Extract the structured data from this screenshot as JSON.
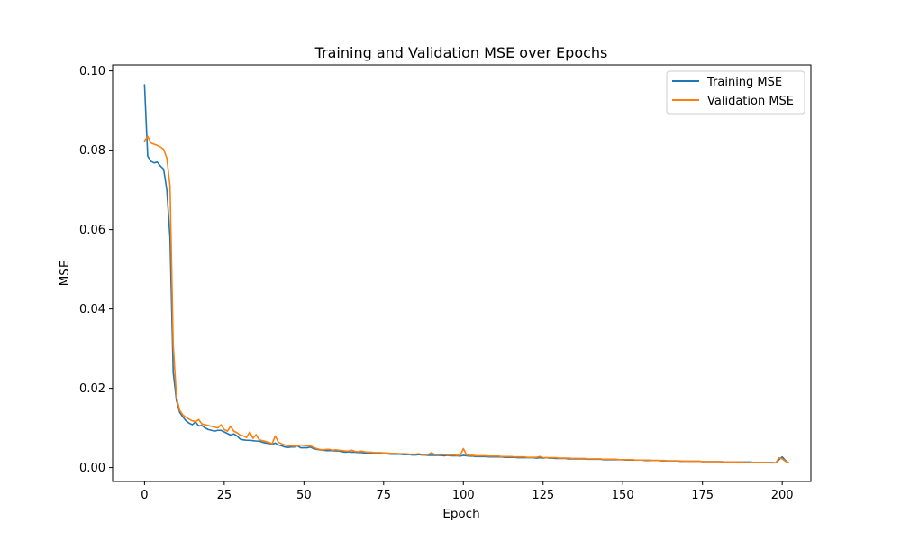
{
  "chart_data": {
    "type": "line",
    "title": "Training and Validation MSE over Epochs",
    "xlabel": "Epoch",
    "ylabel": "MSE",
    "xlim": [
      -10,
      209
    ],
    "ylim": [
      -0.0035,
      0.1015
    ],
    "xticks": [
      0,
      25,
      50,
      75,
      100,
      125,
      150,
      175,
      200
    ],
    "yticks": [
      0.0,
      0.02,
      0.04,
      0.06,
      0.08,
      0.1
    ],
    "ytick_labels": [
      "0.00",
      "0.02",
      "0.04",
      "0.06",
      "0.08",
      "0.10"
    ],
    "grid": false,
    "legend": "top-right",
    "series": [
      {
        "name": "Training MSE",
        "color": "#1f77b4",
        "values": [
          0.0965,
          0.0785,
          0.0772,
          0.0768,
          0.077,
          0.076,
          0.0752,
          0.07,
          0.058,
          0.024,
          0.017,
          0.014,
          0.0128,
          0.0118,
          0.0112,
          0.0108,
          0.0115,
          0.0105,
          0.0106,
          0.01,
          0.0096,
          0.0094,
          0.0092,
          0.0094,
          0.0094,
          0.009,
          0.0086,
          0.0082,
          0.0085,
          0.008,
          0.0072,
          0.007,
          0.0069,
          0.0069,
          0.0068,
          0.0067,
          0.0067,
          0.0064,
          0.0062,
          0.0061,
          0.0059,
          0.0062,
          0.0057,
          0.0055,
          0.0052,
          0.0051,
          0.0052,
          0.0052,
          0.0055,
          0.005,
          0.005,
          0.005,
          0.0052,
          0.0048,
          0.0046,
          0.0045,
          0.0044,
          0.0043,
          0.0043,
          0.0043,
          0.0042,
          0.0042,
          0.004,
          0.0039,
          0.004,
          0.0039,
          0.0039,
          0.0038,
          0.0038,
          0.0037,
          0.0037,
          0.0036,
          0.0036,
          0.0036,
          0.0036,
          0.0035,
          0.0035,
          0.0034,
          0.0034,
          0.0034,
          0.0034,
          0.0033,
          0.0033,
          0.0033,
          0.0032,
          0.0032,
          0.0033,
          0.0032,
          0.0032,
          0.0031,
          0.0031,
          0.0031,
          0.0031,
          0.0031,
          0.003,
          0.0031,
          0.003,
          0.003,
          0.003,
          0.0029,
          0.0031,
          0.003,
          0.0029,
          0.0029,
          0.0028,
          0.0028,
          0.0028,
          0.0028,
          0.0027,
          0.0027,
          0.0027,
          0.0027,
          0.0027,
          0.0026,
          0.0026,
          0.0026,
          0.0026,
          0.0025,
          0.0025,
          0.0025,
          0.0025,
          0.0025,
          0.0025,
          0.0024,
          0.0025,
          0.0024,
          0.0025,
          0.0024,
          0.0024,
          0.0023,
          0.0023,
          0.0023,
          0.0023,
          0.0022,
          0.0022,
          0.0022,
          0.0022,
          0.0022,
          0.0022,
          0.0021,
          0.0021,
          0.0021,
          0.0021,
          0.0021,
          0.002,
          0.002,
          0.002,
          0.002,
          0.002,
          0.002,
          0.002,
          0.0019,
          0.0019,
          0.0019,
          0.0019,
          0.0019,
          0.0019,
          0.0018,
          0.0018,
          0.0018,
          0.0018,
          0.0018,
          0.0017,
          0.0017,
          0.0017,
          0.0017,
          0.0017,
          0.0017,
          0.0016,
          0.0016,
          0.0016,
          0.0016,
          0.0016,
          0.0016,
          0.0016,
          0.0015,
          0.0015,
          0.0015,
          0.0015,
          0.0015,
          0.0015,
          0.0015,
          0.0014,
          0.0014,
          0.0014,
          0.0014,
          0.0014,
          0.0014,
          0.0014,
          0.0014,
          0.0014,
          0.0013,
          0.0013,
          0.0013,
          0.0013,
          0.0013,
          0.0013,
          0.0013,
          0.0012,
          0.002,
          0.0027,
          0.0018,
          0.0012
        ]
      },
      {
        "name": "Validation MSE",
        "color": "#ff7f0e",
        "values": [
          0.0823,
          0.0835,
          0.0818,
          0.0815,
          0.0812,
          0.0808,
          0.0802,
          0.078,
          0.071,
          0.031,
          0.018,
          0.0145,
          0.0133,
          0.0127,
          0.0122,
          0.0118,
          0.0116,
          0.0121,
          0.011,
          0.0108,
          0.0106,
          0.0104,
          0.0102,
          0.01,
          0.0108,
          0.0096,
          0.0092,
          0.0104,
          0.0092,
          0.0088,
          0.0082,
          0.008,
          0.0076,
          0.009,
          0.0074,
          0.0083,
          0.007,
          0.0068,
          0.0066,
          0.0064,
          0.006,
          0.008,
          0.0064,
          0.006,
          0.0057,
          0.0055,
          0.0055,
          0.0054,
          0.0055,
          0.0057,
          0.0056,
          0.0055,
          0.0055,
          0.0051,
          0.0048,
          0.0046,
          0.0045,
          0.0046,
          0.0046,
          0.0044,
          0.0045,
          0.0044,
          0.0043,
          0.0042,
          0.0042,
          0.0044,
          0.0041,
          0.004,
          0.0042,
          0.004,
          0.0039,
          0.0039,
          0.0038,
          0.0038,
          0.0038,
          0.0037,
          0.0037,
          0.0036,
          0.0036,
          0.0036,
          0.0035,
          0.0035,
          0.0035,
          0.0034,
          0.0034,
          0.0034,
          0.0035,
          0.0033,
          0.0033,
          0.0033,
          0.0038,
          0.0033,
          0.0033,
          0.0034,
          0.0033,
          0.0032,
          0.0032,
          0.0032,
          0.0031,
          0.0031,
          0.0048,
          0.0032,
          0.0031,
          0.0031,
          0.003,
          0.003,
          0.003,
          0.003,
          0.0029,
          0.0029,
          0.0029,
          0.0029,
          0.0028,
          0.0028,
          0.0028,
          0.0028,
          0.0027,
          0.0027,
          0.0027,
          0.0027,
          0.0026,
          0.0026,
          0.0026,
          0.0026,
          0.0028,
          0.0025,
          0.0025,
          0.0025,
          0.0025,
          0.0025,
          0.0024,
          0.0024,
          0.0024,
          0.0024,
          0.0023,
          0.0023,
          0.0023,
          0.0023,
          0.0023,
          0.0022,
          0.0022,
          0.0022,
          0.0022,
          0.0022,
          0.0021,
          0.0021,
          0.0021,
          0.0021,
          0.0021,
          0.002,
          0.002,
          0.002,
          0.002,
          0.002,
          0.0019,
          0.0019,
          0.0019,
          0.0019,
          0.0019,
          0.0018,
          0.0018,
          0.0018,
          0.0018,
          0.0018,
          0.0017,
          0.0017,
          0.0017,
          0.0017,
          0.0017,
          0.0016,
          0.0016,
          0.0016,
          0.0016,
          0.0016,
          0.0016,
          0.0015,
          0.0015,
          0.0015,
          0.0015,
          0.0015,
          0.0015,
          0.0014,
          0.0014,
          0.0014,
          0.0014,
          0.0014,
          0.0014,
          0.0014,
          0.0013,
          0.0013,
          0.0013,
          0.0013,
          0.0013,
          0.0013,
          0.0013,
          0.0013,
          0.0012,
          0.0012,
          0.0012,
          0.0025,
          0.0022,
          0.0016,
          0.0012
        ]
      }
    ]
  }
}
